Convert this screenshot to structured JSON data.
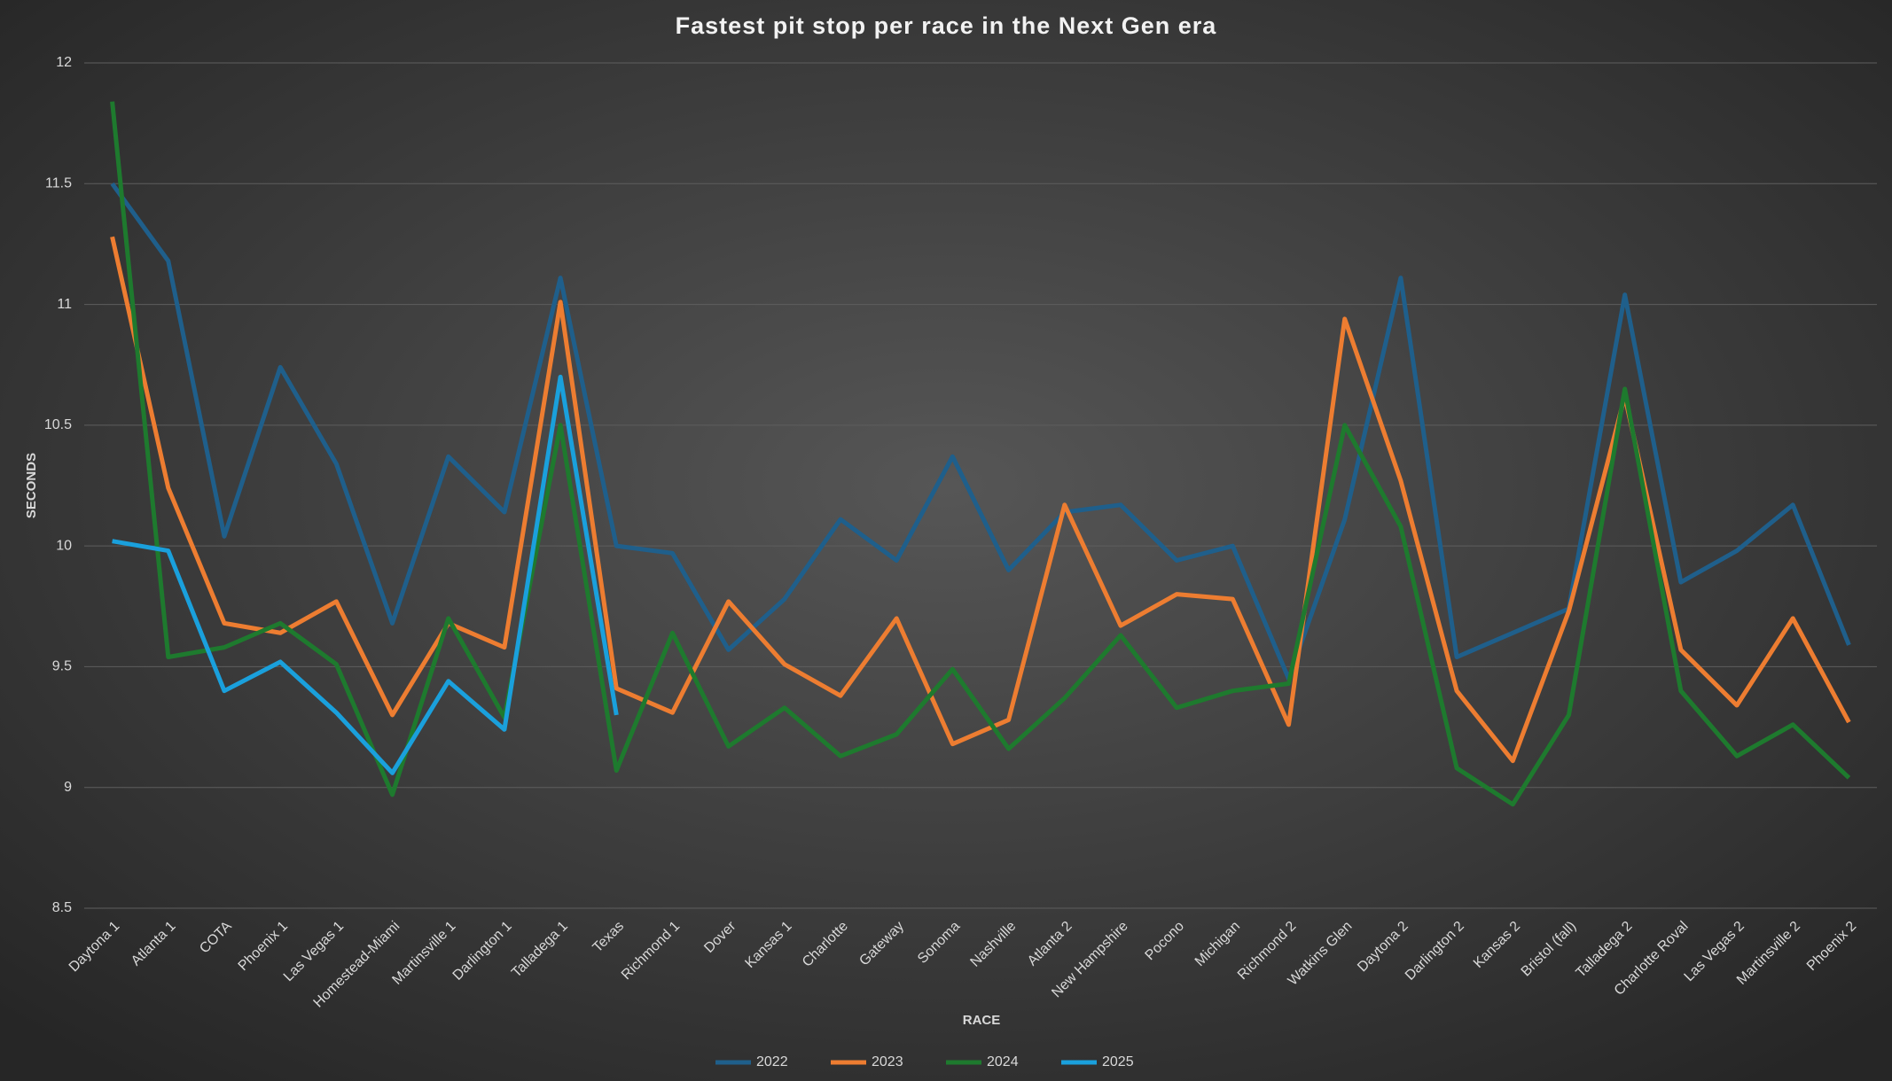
{
  "chart_data": {
    "type": "line",
    "title": "Fastest pit stop per race in the Next Gen era",
    "x_label": "RACE",
    "y_label": "SECONDS",
    "categories": [
      "Daytona 1",
      "Atlanta 1",
      "COTA",
      "Phoenix 1",
      "Las Vegas 1",
      "Homestead-Miami",
      "Martinsville 1",
      "Darlington 1",
      "Talladega 1",
      "Texas",
      "Richmond 1",
      "Dover",
      "Kansas 1",
      "Charlotte",
      "Gateway",
      "Sonoma",
      "Nashville",
      "Atlanta 2",
      "New Hampshire",
      "Pocono",
      "Michigan",
      "Richmond 2",
      "Watkins Glen",
      "Daytona 2",
      "Darlington 2",
      "Kansas 2",
      "Bristol (fall)",
      "Talladega 2",
      "Charlotte Roval",
      "Las Vegas 2",
      "Martinsville 2",
      "Phoenix 2"
    ],
    "series": [
      {
        "name": "2022",
        "color": "#1f5f8b",
        "values": [
          11.5,
          11.18,
          10.04,
          10.74,
          10.34,
          9.68,
          10.37,
          10.14,
          11.11,
          10.0,
          9.97,
          9.57,
          9.78,
          10.11,
          9.94,
          10.37,
          9.9,
          10.14,
          10.17,
          9.94,
          10.0,
          9.45,
          10.11,
          11.11,
          9.54,
          9.64,
          9.74,
          11.04,
          9.85,
          9.98,
          10.17,
          9.59
        ]
      },
      {
        "name": "2023",
        "color": "#ed7d31",
        "values": [
          11.28,
          10.24,
          9.68,
          9.64,
          9.77,
          9.3,
          9.68,
          9.58,
          11.01,
          9.41,
          9.31,
          9.77,
          9.51,
          9.38,
          9.7,
          9.18,
          9.28,
          10.17,
          9.67,
          9.8,
          9.78,
          9.26,
          10.94,
          10.27,
          9.4,
          9.11,
          9.73,
          10.62,
          9.57,
          9.34,
          9.7,
          9.27
        ]
      },
      {
        "name": "2024",
        "color": "#1e7a2e",
        "values": [
          11.84,
          9.54,
          9.58,
          9.68,
          9.51,
          8.97,
          9.7,
          9.29,
          10.5,
          9.07,
          9.64,
          9.17,
          9.33,
          9.13,
          9.22,
          9.49,
          9.16,
          9.37,
          9.63,
          9.33,
          9.4,
          9.43,
          10.5,
          10.08,
          9.08,
          8.93,
          9.3,
          10.65,
          9.4,
          9.13,
          9.26,
          9.04
        ]
      },
      {
        "name": "2025",
        "color": "#1aa0dc",
        "values": [
          10.02,
          9.98,
          9.4,
          9.52,
          9.31,
          9.06,
          9.44,
          9.24,
          10.7,
          9.3,
          null,
          null,
          null,
          null,
          null,
          null,
          null,
          null,
          null,
          null,
          null,
          null,
          null,
          null,
          null,
          null,
          null,
          null,
          null,
          null,
          null,
          null
        ]
      }
    ],
    "ylim": [
      8.5,
      12
    ],
    "yticks": [
      8.5,
      9,
      9.5,
      10,
      10.5,
      11,
      11.5,
      12
    ],
    "grid": true,
    "legend": "bottom"
  }
}
